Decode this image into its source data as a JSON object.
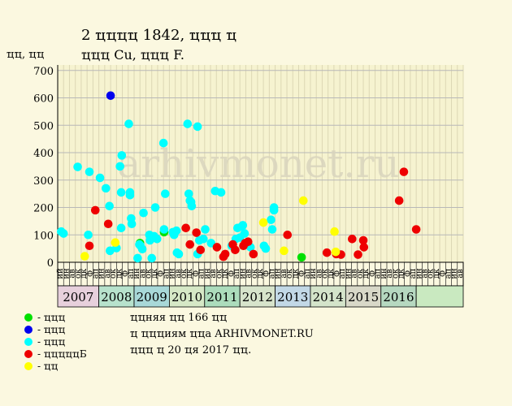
{
  "title_line1": "2 ҵҵҵҵ 1842, ҵҵҵ ҵ",
  "title_line2": "ҵҵҵ Cu, ҵҵҵ F.",
  "y_unit_label": "ҵҵ, ҵҵ",
  "watermark": "arhivmonet.ru",
  "notes": {
    "line1": "ҵҵняя ҵҵ 166 ҵҵ",
    "line2": "ҵ ҵҵҵиям ҵҵа ARHIVMONET.RU",
    "line3": "ҵҵҵ ҵ 20 ҵя 2017 ҵҵ."
  },
  "chart_data": {
    "type": "scatter",
    "y_ticks": [
      0,
      100,
      200,
      300,
      400,
      500,
      600,
      700
    ],
    "ylim": [
      0,
      720
    ],
    "grid": true,
    "months": [
      "ий",
      "ин",
      "ав",
      "ок",
      "дк",
      "ф",
      "ап",
      "ин",
      "ав",
      "ок",
      "дк",
      "ф",
      "ап",
      "ин",
      "ав",
      "ок",
      "дк",
      "ф",
      "ап",
      "ин",
      "ав",
      "ок",
      "дк",
      "ф",
      "ап",
      "ин",
      "ав",
      "ок",
      "дк",
      "ф",
      "ап",
      "ин",
      "ав",
      "ок",
      "дк",
      "ф",
      "ап",
      "ин",
      "ав",
      "ок",
      "дк",
      "ф",
      "ап",
      "ин",
      "ав",
      "ок",
      "дк",
      "ф",
      "ап",
      "ин",
      "ав",
      "ок",
      "дк",
      "ф",
      "ап",
      "ин",
      "ав",
      "ок",
      "дк",
      "ф",
      "ап",
      "ин",
      "ав",
      "ок",
      "дк",
      "ф",
      "ап",
      "ин",
      "ав"
    ],
    "x_max": 69,
    "years": [
      {
        "label": "2007",
        "start": 0,
        "end": 7,
        "color": "#e7d0dc"
      },
      {
        "label": "2008",
        "start": 7,
        "end": 13,
        "color": "#b7e2cc"
      },
      {
        "label": "2009",
        "start": 13,
        "end": 19,
        "color": "#a8d8d8"
      },
      {
        "label": "2010",
        "start": 19,
        "end": 25,
        "color": "#d6e8c6"
      },
      {
        "label": "2011",
        "start": 25,
        "end": 31,
        "color": "#acdcbc"
      },
      {
        "label": "2012",
        "start": 31,
        "end": 37,
        "color": "#d7e4cb"
      },
      {
        "label": "2013",
        "start": 37,
        "end": 43,
        "color": "#c2d8e6"
      },
      {
        "label": "2014",
        "start": 43,
        "end": 49,
        "color": "#d4e4ca"
      },
      {
        "label": "2015",
        "start": 49,
        "end": 55,
        "color": "#d8d8c8"
      },
      {
        "label": "2016",
        "start": 55,
        "end": 61,
        "color": "#b6d8c0"
      },
      {
        "label": "",
        "start": 61,
        "end": 69,
        "color": "#c9e9c0"
      }
    ],
    "legend": [
      {
        "name": "- ҵҵҵ",
        "color": "#00e000"
      },
      {
        "name": "- ҵҵҵ",
        "color": "#0000ee"
      },
      {
        "name": "- ҵҵҵ",
        "color": "#00ffff"
      },
      {
        "name": "- ҵҵҵҵҵБ",
        "color": "#ee0000"
      },
      {
        "name": "- ҵҵ",
        "color": "#ffff00"
      }
    ],
    "series": [
      {
        "color": "#00e000",
        "points": [
          [
            14.0,
            70
          ],
          [
            18.1,
            110
          ],
          [
            41.5,
            18
          ]
        ]
      },
      {
        "color": "#0000ee",
        "points": [
          [
            9.0,
            608
          ]
        ]
      },
      {
        "color": "#00ffff",
        "points": [
          [
            0.6,
            112
          ],
          [
            1.0,
            105
          ],
          [
            3.4,
            348
          ],
          [
            5.2,
            100
          ],
          [
            5.4,
            330
          ],
          [
            7.2,
            308
          ],
          [
            8.2,
            270
          ],
          [
            8.8,
            205
          ],
          [
            8.9,
            42
          ],
          [
            10.0,
            52
          ],
          [
            10.6,
            350
          ],
          [
            10.9,
            390
          ],
          [
            10.8,
            125
          ],
          [
            10.8,
            255
          ],
          [
            12.1,
            505
          ],
          [
            12.3,
            255
          ],
          [
            12.3,
            245
          ],
          [
            12.5,
            160
          ],
          [
            12.6,
            140
          ],
          [
            13.6,
            15
          ],
          [
            13.9,
            65
          ],
          [
            14.1,
            60
          ],
          [
            14.4,
            48
          ],
          [
            14.6,
            180
          ],
          [
            15.6,
            100
          ],
          [
            15.7,
            80
          ],
          [
            16.0,
            15
          ],
          [
            16.3,
            90
          ],
          [
            16.4,
            95
          ],
          [
            16.6,
            200
          ],
          [
            16.9,
            85
          ],
          [
            18.0,
            435
          ],
          [
            18.3,
            250
          ],
          [
            18.1,
            120
          ],
          [
            19.6,
            110
          ],
          [
            19.8,
            100
          ],
          [
            20.2,
            115
          ],
          [
            20.3,
            35
          ],
          [
            20.6,
            30
          ],
          [
            22.1,
            505
          ],
          [
            22.3,
            250
          ],
          [
            22.5,
            225
          ],
          [
            22.7,
            220
          ],
          [
            22.8,
            205
          ],
          [
            23.8,
            495
          ],
          [
            23.8,
            30
          ],
          [
            24.1,
            80
          ],
          [
            24.8,
            85
          ],
          [
            25.1,
            120
          ],
          [
            26.1,
            70
          ],
          [
            26.8,
            260
          ],
          [
            27.8,
            255
          ],
          [
            29.6,
            60
          ],
          [
            30.3,
            85
          ],
          [
            30.6,
            125
          ],
          [
            31.0,
            90
          ],
          [
            31.3,
            130
          ],
          [
            31.5,
            135
          ],
          [
            31.8,
            105
          ],
          [
            32.8,
            55
          ],
          [
            35.1,
            60
          ],
          [
            35.4,
            50
          ],
          [
            36.3,
            155
          ],
          [
            36.5,
            120
          ],
          [
            36.8,
            200
          ],
          [
            36.8,
            190
          ]
        ]
      },
      {
        "color": "#ee0000",
        "points": [
          [
            5.4,
            60
          ],
          [
            6.4,
            190
          ],
          [
            8.6,
            140
          ],
          [
            21.8,
            125
          ],
          [
            22.5,
            65
          ],
          [
            23.6,
            108
          ],
          [
            24.3,
            45
          ],
          [
            27.1,
            55
          ],
          [
            28.2,
            20
          ],
          [
            28.5,
            30
          ],
          [
            29.8,
            65
          ],
          [
            30.2,
            45
          ],
          [
            31.6,
            60
          ],
          [
            31.9,
            70
          ],
          [
            32.4,
            75
          ],
          [
            33.3,
            30
          ],
          [
            39.1,
            100
          ],
          [
            45.8,
            35
          ],
          [
            47.4,
            30
          ],
          [
            48.2,
            28
          ],
          [
            50.1,
            85
          ],
          [
            51.1,
            28
          ],
          [
            52.0,
            80
          ],
          [
            52.1,
            55
          ],
          [
            58.1,
            225
          ],
          [
            58.9,
            330
          ],
          [
            61.0,
            120
          ]
        ]
      },
      {
        "color": "#ffff00",
        "points": [
          [
            4.6,
            22
          ],
          [
            9.8,
            72
          ],
          [
            35.0,
            145
          ],
          [
            38.5,
            42
          ],
          [
            41.8,
            225
          ],
          [
            47.1,
            112
          ],
          [
            47.3,
            38
          ]
        ]
      }
    ]
  }
}
